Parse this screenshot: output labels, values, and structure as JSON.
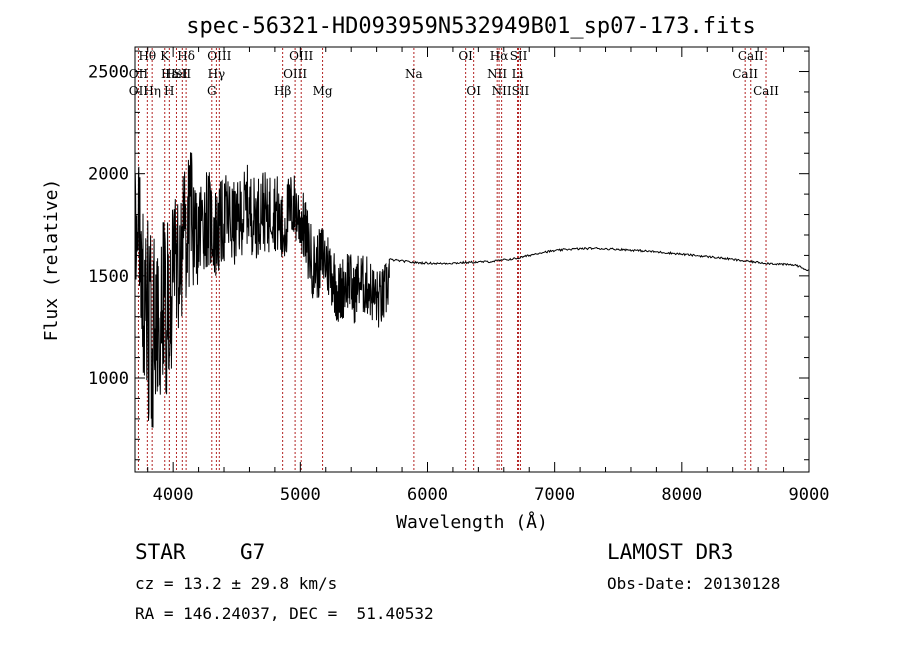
{
  "chart_data": {
    "type": "line",
    "title": "spec-56321-HD093959N532949B01_sp07-173.fits",
    "xlabel": "Wavelength (Å)",
    "ylabel": "Flux (relative)",
    "xlim": [
      3700,
      9000
    ],
    "ylim": [
      540,
      2620
    ],
    "x_ticks": [
      4000,
      5000,
      6000,
      7000,
      8000,
      9000
    ],
    "x_tick_labels": [
      "4000",
      "5000",
      "6000",
      "7000",
      "8000",
      "9000"
    ],
    "y_ticks": [
      1000,
      1500,
      2000,
      2500
    ],
    "y_tick_labels": [
      "1000",
      "1500",
      "2000",
      "2500"
    ],
    "series": [
      {
        "name": "spectrum",
        "noisy_segment": {
          "x": [
            3700,
            3740,
            3780,
            3820,
            3860,
            3900,
            3940,
            3980,
            4020,
            4060,
            4100,
            4140,
            4180,
            4220,
            4260,
            4300,
            4340,
            4380,
            4420,
            4460,
            4500,
            4540,
            4580,
            4620,
            4660,
            4700,
            4740,
            4780,
            4820,
            4860,
            4900,
            4940,
            4980,
            5020,
            5060,
            5100,
            5140,
            5180,
            5220,
            5260,
            5300,
            5340,
            5380,
            5420,
            5460,
            5500,
            5540,
            5580,
            5620,
            5660,
            5700
          ],
          "y": [
            1900,
            1700,
            1300,
            1250,
            1200,
            1300,
            1350,
            1400,
            1550,
            1600,
            1700,
            1800,
            1650,
            1750,
            1800,
            1750,
            1700,
            1750,
            1800,
            1750,
            1750,
            1800,
            1850,
            1800,
            1780,
            1850,
            1780,
            1850,
            1800,
            1700,
            1800,
            1850,
            1800,
            1750,
            1650,
            1550,
            1550,
            1600,
            1550,
            1500,
            1400,
            1450,
            1500,
            1400,
            1480,
            1450,
            1450,
            1400,
            1380,
            1400,
            1500
          ],
          "spread": [
            380,
            420,
            500,
            500,
            480,
            450,
            450,
            420,
            380,
            380,
            330,
            330,
            300,
            260,
            260,
            240,
            240,
            220,
            220,
            220,
            200,
            200,
            200,
            200,
            200,
            200,
            200,
            200,
            200,
            200,
            180,
            180,
            170,
            170,
            180,
            170,
            170,
            170,
            170,
            170,
            160,
            160,
            160,
            150,
            150,
            150,
            150,
            150,
            150,
            150,
            150
          ],
          "points_per_unit": 1.1,
          "seed": 56321
        },
        "smooth_segment": {
          "x": [
            5700,
            5900,
            6100,
            6300,
            6500,
            6700,
            6900,
            7100,
            7300,
            7500,
            7700,
            7900,
            8100,
            8300,
            8500,
            8700,
            8900,
            9000
          ],
          "y": [
            1580,
            1565,
            1560,
            1565,
            1570,
            1585,
            1615,
            1630,
            1635,
            1630,
            1622,
            1612,
            1600,
            1588,
            1572,
            1560,
            1552,
            1525
          ],
          "noise": 5
        }
      }
    ],
    "lines": {
      "top_row": [
        {
          "label": "Hθ",
          "x": 3797
        },
        {
          "label": "K",
          "x": 3934
        },
        {
          "label": "Hδ",
          "x": 4102
        },
        {
          "label": "OIII",
          "x": 4363
        },
        {
          "label": "OIII",
          "x": 5007
        },
        {
          "label": "OI",
          "x": 6300
        },
        {
          "label": "Hα",
          "x": 6563
        },
        {
          "label": "SII",
          "x": 6716
        },
        {
          "label": "CaII",
          "x": 8542
        }
      ],
      "second_row": [
        {
          "label": "OII",
          "x": 3727
        },
        {
          "label": "Hε",
          "x": 3970
        },
        {
          "label": "HeI",
          "x": 4026
        },
        {
          "label": "SII",
          "x": 4072
        },
        {
          "label": "Hγ",
          "x": 4340
        },
        {
          "label": "OIII",
          "x": 4959
        },
        {
          "label": "Na",
          "x": 5893
        },
        {
          "label": "NII",
          "x": 6548
        },
        {
          "label": "Li",
          "x": 6708
        },
        {
          "label": "CaII",
          "x": 8498
        }
      ],
      "third_row": [
        {
          "label": "OII",
          "x": 3727
        },
        {
          "label": "Hη",
          "x": 3835
        },
        {
          "label": "H",
          "x": 3969
        },
        {
          "label": "G",
          "x": 4304
        },
        {
          "label": "Hβ",
          "x": 4861
        },
        {
          "label": "Mg",
          "x": 5175
        },
        {
          "label": "OI",
          "x": 6363
        },
        {
          "label": "NII",
          "x": 6583
        },
        {
          "label": "SII",
          "x": 6731
        },
        {
          "label": "CaII",
          "x": 8662
        }
      ]
    }
  },
  "info": {
    "object_class": "STAR",
    "subclass": "G7",
    "survey": "LAMOST DR3",
    "redshift": "cz = 13.2 ± 29.8 km/s",
    "obs_date": "Obs-Date: 20130128",
    "coords": "RA = 146.24037, DEC =  51.40532"
  },
  "colors": {
    "line_marker": "#b22222",
    "spectrum": "#000000",
    "axis": "#000000"
  }
}
